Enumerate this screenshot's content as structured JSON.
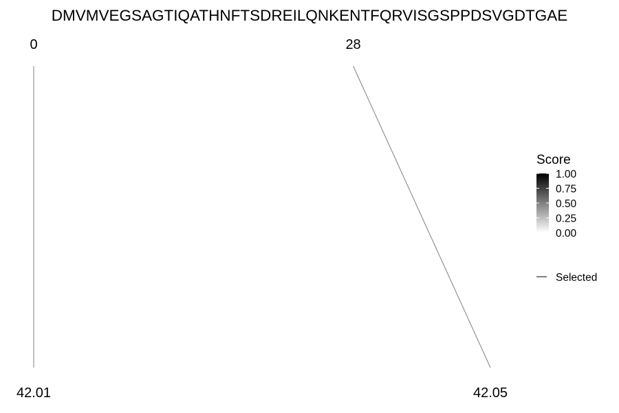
{
  "chart_data": {
    "type": "line",
    "title": "DMVMVEGSAGTIQATHNFTSDREILQNKENTFQRVISGSPPDSVGDTGAE",
    "top_labels": [
      "0",
      "28"
    ],
    "bottom_labels": [
      "42.01",
      "42.05"
    ],
    "series": [
      {
        "name": "Selected",
        "top": 0,
        "bottom": 42.01
      },
      {
        "name": "Selected",
        "top": 28,
        "bottom": 42.05
      }
    ],
    "legend": {
      "title": "Score",
      "ticks": [
        "1.00",
        "0.75",
        "0.50",
        "0.25",
        "0.00"
      ],
      "gradient": [
        "#000000",
        "#ffffff"
      ],
      "line_label": "Selected",
      "placement": "right"
    },
    "line_color": "#7f7f7f"
  }
}
